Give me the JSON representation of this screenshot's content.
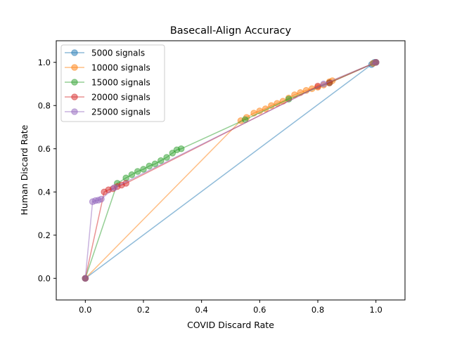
{
  "chart_data": {
    "type": "line",
    "title": "Basecall-Align Accuracy",
    "xlabel": "COVID Discard Rate",
    "ylabel": "Human Discard Rate",
    "xlim": [
      -0.1,
      1.1
    ],
    "ylim": [
      -0.1,
      1.1
    ],
    "xticks": [
      "0.0",
      "0.2",
      "0.4",
      "0.6",
      "0.8",
      "1.0"
    ],
    "yticks": [
      "0.0",
      "0.2",
      "0.4",
      "0.6",
      "0.8",
      "1.0"
    ],
    "grid": false,
    "legend_position": "top-left",
    "series": [
      {
        "name": "5000 signals",
        "color": "#1f77b4",
        "points": [
          [
            0,
            0
          ],
          [
            0.985,
            0.99
          ],
          [
            0.99,
            0.995
          ],
          [
            0.995,
            1.0
          ],
          [
            1.0,
            1.0
          ]
        ]
      },
      {
        "name": "10000 signals",
        "color": "#ff7f0e",
        "points": [
          [
            0,
            0
          ],
          [
            0.535,
            0.73
          ],
          [
            0.555,
            0.745
          ],
          [
            0.58,
            0.765
          ],
          [
            0.6,
            0.775
          ],
          [
            0.62,
            0.785
          ],
          [
            0.64,
            0.8
          ],
          [
            0.66,
            0.81
          ],
          [
            0.68,
            0.82
          ],
          [
            0.7,
            0.835
          ],
          [
            0.72,
            0.85
          ],
          [
            0.74,
            0.86
          ],
          [
            0.76,
            0.87
          ],
          [
            0.78,
            0.878
          ],
          [
            0.8,
            0.885
          ],
          [
            0.82,
            0.895
          ],
          [
            0.84,
            0.91
          ],
          [
            0.85,
            0.915
          ],
          [
            0.99,
            0.995
          ],
          [
            1.0,
            1.0
          ]
        ]
      },
      {
        "name": "15000 signals",
        "color": "#2ca02c",
        "points": [
          [
            0,
            0
          ],
          [
            0.11,
            0.44
          ],
          [
            0.14,
            0.465
          ],
          [
            0.16,
            0.48
          ],
          [
            0.18,
            0.495
          ],
          [
            0.2,
            0.505
          ],
          [
            0.22,
            0.52
          ],
          [
            0.24,
            0.53
          ],
          [
            0.26,
            0.545
          ],
          [
            0.28,
            0.56
          ],
          [
            0.3,
            0.58
          ],
          [
            0.315,
            0.595
          ],
          [
            0.33,
            0.6
          ],
          [
            0.55,
            0.735
          ],
          [
            0.7,
            0.83
          ],
          [
            0.84,
            0.905
          ],
          [
            1.0,
            1.0
          ]
        ]
      },
      {
        "name": "20000 signals",
        "color": "#d62728",
        "points": [
          [
            0,
            0
          ],
          [
            0.065,
            0.4
          ],
          [
            0.08,
            0.41
          ],
          [
            0.095,
            0.415
          ],
          [
            0.11,
            0.425
          ],
          [
            0.125,
            0.432
          ],
          [
            0.14,
            0.44
          ],
          [
            0.8,
            0.89
          ],
          [
            0.84,
            0.905
          ],
          [
            1.0,
            1.0
          ]
        ]
      },
      {
        "name": "25000 signals",
        "color": "#9467bd",
        "points": [
          [
            0,
            0
          ],
          [
            0.025,
            0.355
          ],
          [
            0.035,
            0.36
          ],
          [
            0.045,
            0.362
          ],
          [
            0.055,
            0.367
          ],
          [
            0.1,
            0.42
          ],
          [
            0.82,
            0.9
          ],
          [
            1.0,
            1.0
          ]
        ]
      }
    ]
  }
}
